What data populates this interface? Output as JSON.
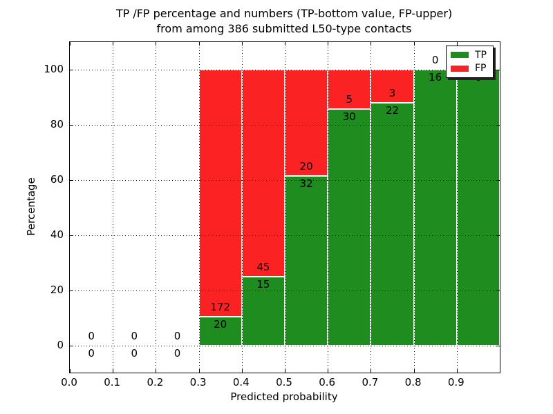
{
  "title": {
    "line1": "TP /FP percentage and numbers (TP-bottom value, FP-upper)",
    "line2": "from among 386 submitted L50-type contacts"
  },
  "axes": {
    "xlabel": "Predicted probability",
    "ylabel": "Percentage"
  },
  "legend": {
    "items": [
      {
        "label": "TP",
        "color": "#1e8c1e"
      },
      {
        "label": "FP",
        "color": "#fa2222"
      }
    ]
  },
  "chart_data": {
    "type": "bar",
    "stacked": true,
    "normalization": "percent_of_bin_total",
    "title": "TP /FP percentage and numbers (TP-bottom value, FP-upper) from among 386 submitted L50-type contacts",
    "xlabel": "Predicted probability",
    "ylabel": "Percentage",
    "xlim": [
      0.0,
      1.0
    ],
    "ylim": [
      -10,
      110
    ],
    "grid": true,
    "legend_position": "upper right",
    "bin_width": 0.1,
    "bin_starts": [
      0.0,
      0.1,
      0.2,
      0.3,
      0.4,
      0.5,
      0.6,
      0.7,
      0.8,
      0.9
    ],
    "series": [
      {
        "name": "TP",
        "color": "#1e8c1e",
        "counts": [
          0,
          0,
          0,
          20,
          15,
          32,
          30,
          22,
          16,
          6
        ]
      },
      {
        "name": "FP",
        "color": "#fa2222",
        "counts": [
          0,
          0,
          0,
          172,
          45,
          20,
          5,
          3,
          0,
          0
        ]
      }
    ],
    "total_contacts": 386,
    "x_tick_labels": [
      "0.0",
      "0.1",
      "0.2",
      "0.3",
      "0.4",
      "0.5",
      "0.6",
      "0.7",
      "0.8",
      "0.9"
    ],
    "y_tick_values": [
      0,
      20,
      40,
      60,
      80,
      100
    ],
    "y_tick_labels": [
      "0",
      "20",
      "40",
      "60",
      "80",
      "100"
    ]
  }
}
